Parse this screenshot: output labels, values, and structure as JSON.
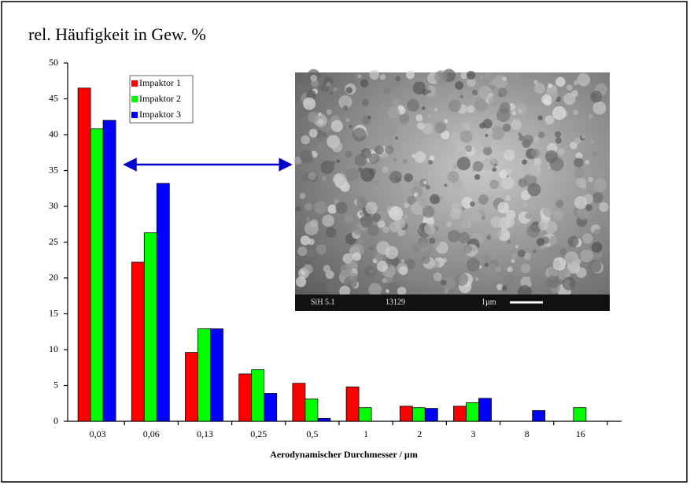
{
  "chart_data": {
    "type": "bar",
    "title": "rel. Häufigkeit in Gew. %",
    "x_label": "Aerodynamischer Durchmesser / µm",
    "categories": [
      "0,03",
      "0,06",
      "0,13",
      "0,25",
      "0,5",
      "1",
      "2",
      "3",
      "8",
      "16"
    ],
    "series": [
      {
        "name": "Impaktor 1",
        "color": "#ff0000",
        "values": [
          46.5,
          22.2,
          9.6,
          6.6,
          5.3,
          4.8,
          2.1,
          2.1,
          0,
          0
        ]
      },
      {
        "name": "Impaktor 2",
        "color": "#00ff00",
        "values": [
          40.8,
          26.3,
          12.9,
          7.2,
          3.1,
          1.9,
          1.9,
          2.6,
          0,
          1.9
        ]
      },
      {
        "name": "Impaktor 3",
        "color": "#0000ff",
        "values": [
          42,
          33.2,
          12.9,
          3.9,
          0.4,
          0,
          1.8,
          3.2,
          1.5,
          0
        ]
      }
    ],
    "ylim": [
      0,
      50
    ],
    "yticks": [
      0,
      5,
      10,
      15,
      20,
      25,
      30,
      35,
      40,
      45,
      50
    ],
    "legend": "upper-left",
    "image_labels": [
      "SiH 5.1",
      "13129",
      "1µm"
    ]
  }
}
